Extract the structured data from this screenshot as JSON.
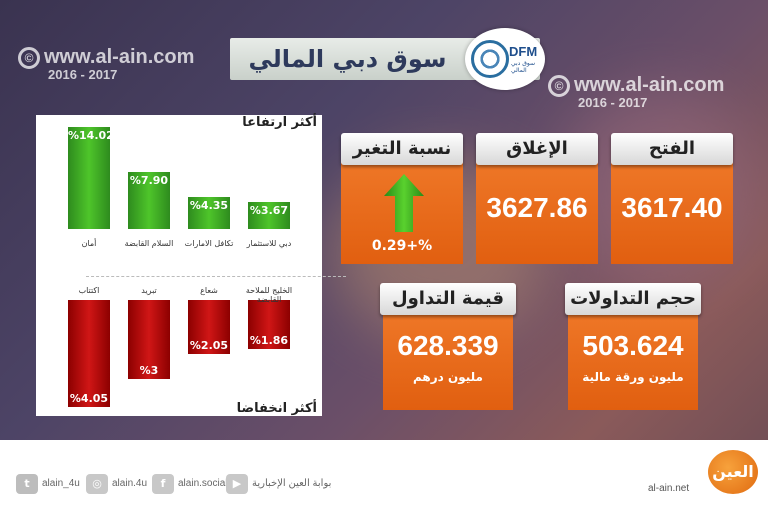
{
  "watermark": {
    "copyright_symbol": "©",
    "site": "www.al-ain.com",
    "years": "2016 - 2017"
  },
  "header": {
    "title": "سوق دبي المالي",
    "logo_text": "DFM",
    "logo_subtext": "سوق دبي المالي"
  },
  "gainers": {
    "label": "أكثر ارتفاعا",
    "items": [
      {
        "name": "أمان",
        "value": "%14.02",
        "pct": 14.02
      },
      {
        "name": "السلام القابضة",
        "value": "%7.90",
        "pct": 7.9
      },
      {
        "name": "تكافل الامارات",
        "value": "%4.35",
        "pct": 4.35
      },
      {
        "name": "دبي للاستثمار",
        "value": "%3.67",
        "pct": 3.67
      }
    ]
  },
  "losers": {
    "label": "أكثر انخفاضا",
    "items": [
      {
        "name": "اكتتاب",
        "value": "%4.05",
        "pct": 4.05
      },
      {
        "name": "تبريد",
        "value": "%3",
        "pct": 3
      },
      {
        "name": "شعاع",
        "value": "%2.05",
        "pct": 2.05
      },
      {
        "name": "الخليج للملاحة القابضة",
        "value": "%1.86",
        "pct": 1.86
      }
    ]
  },
  "stats": {
    "change": {
      "label": "نسبة التغير",
      "value": "%+0.29"
    },
    "close": {
      "label": "الإغلاق",
      "value": "3627.86"
    },
    "open": {
      "label": "الفتح",
      "value": "3617.40"
    },
    "turnover": {
      "label": "قيمة التداول",
      "value": "628.339",
      "unit": "مليون درهم"
    },
    "volume": {
      "label": "حجم التداولات",
      "value": "503.624",
      "unit": "مليون ورقة مالية"
    }
  },
  "footer": {
    "twitter": "alain_4u",
    "instagram": "alain.4u",
    "facebook": "alain.social",
    "youtube": "بوابة العين الإخبارية",
    "brand": "العين",
    "url": "al-ain.net"
  },
  "colors": {
    "accent": "#e8661a",
    "gain": "#3db324",
    "loss": "#c00d0d"
  }
}
